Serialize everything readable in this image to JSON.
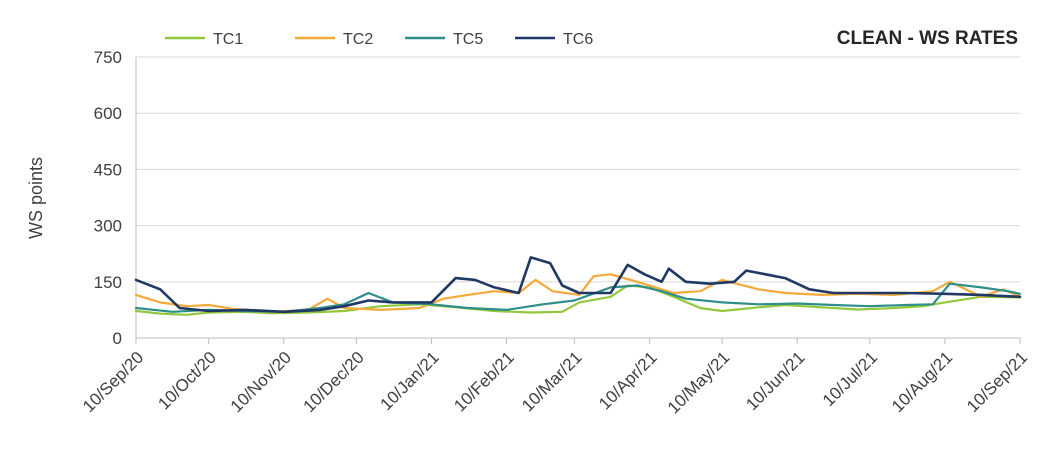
{
  "chart_data": {
    "type": "line",
    "title": "CLEAN - WS RATES",
    "ylabel": "WS points",
    "xlabel": "",
    "ylim": [
      0,
      750
    ],
    "yticks": [
      0,
      150,
      300,
      450,
      600,
      750
    ],
    "xlim": [
      "2020-09-10",
      "2021-09-10"
    ],
    "xtick_labels": [
      "10/Sep/20",
      "10/Oct/20",
      "10/Nov/20",
      "10/Dec/20",
      "10/Jan/21",
      "10/Feb/21",
      "10/Mar/21",
      "10/Apr/21",
      "10/May/21",
      "10/Jun/21",
      "10/Jul/21",
      "10/Aug/21",
      "10/Sep/21"
    ],
    "xtick_dates": [
      "2020-09-10",
      "2020-10-10",
      "2020-11-10",
      "2020-12-10",
      "2021-01-10",
      "2021-02-10",
      "2021-03-10",
      "2021-04-10",
      "2021-05-10",
      "2021-06-10",
      "2021-07-10",
      "2021-08-10",
      "2021-09-10"
    ],
    "grid": "horizontal",
    "legend": "top",
    "series": [
      {
        "name": "TC1",
        "color": "#92c83e",
        "points": [
          [
            "2020-09-10",
            72
          ],
          [
            "2020-09-20",
            65
          ],
          [
            "2020-10-01",
            62
          ],
          [
            "2020-10-10",
            68
          ],
          [
            "2020-10-25",
            70
          ],
          [
            "2020-11-05",
            66
          ],
          [
            "2020-11-20",
            68
          ],
          [
            "2020-12-05",
            72
          ],
          [
            "2020-12-20",
            85
          ],
          [
            "2021-01-05",
            90
          ],
          [
            "2021-01-20",
            82
          ],
          [
            "2021-02-05",
            72
          ],
          [
            "2021-02-20",
            68
          ],
          [
            "2021-03-05",
            70
          ],
          [
            "2021-03-12",
            95
          ],
          [
            "2021-03-25",
            110
          ],
          [
            "2021-04-01",
            140
          ],
          [
            "2021-04-10",
            135
          ],
          [
            "2021-04-20",
            110
          ],
          [
            "2021-05-01",
            80
          ],
          [
            "2021-05-10",
            72
          ],
          [
            "2021-05-25",
            82
          ],
          [
            "2021-06-05",
            88
          ],
          [
            "2021-06-20",
            82
          ],
          [
            "2021-07-05",
            76
          ],
          [
            "2021-07-20",
            80
          ],
          [
            "2021-08-01",
            85
          ],
          [
            "2021-08-10",
            95
          ],
          [
            "2021-08-25",
            110
          ],
          [
            "2021-09-10",
            108
          ]
        ]
      },
      {
        "name": "TC2",
        "color": "#f4a93a",
        "points": [
          [
            "2020-09-10",
            115
          ],
          [
            "2020-09-20",
            95
          ],
          [
            "2020-10-01",
            85
          ],
          [
            "2020-10-10",
            88
          ],
          [
            "2020-10-20",
            78
          ],
          [
            "2020-11-05",
            70
          ],
          [
            "2020-11-20",
            75
          ],
          [
            "2020-11-28",
            105
          ],
          [
            "2020-12-05",
            80
          ],
          [
            "2020-12-20",
            75
          ],
          [
            "2021-01-05",
            80
          ],
          [
            "2021-01-15",
            105
          ],
          [
            "2021-01-25",
            115
          ],
          [
            "2021-02-05",
            125
          ],
          [
            "2021-02-15",
            120
          ],
          [
            "2021-02-22",
            155
          ],
          [
            "2021-03-01",
            125
          ],
          [
            "2021-03-12",
            115
          ],
          [
            "2021-03-18",
            165
          ],
          [
            "2021-03-25",
            170
          ],
          [
            "2021-04-05",
            150
          ],
          [
            "2021-04-20",
            120
          ],
          [
            "2021-05-01",
            125
          ],
          [
            "2021-05-10",
            155
          ],
          [
            "2021-05-25",
            130
          ],
          [
            "2021-06-05",
            120
          ],
          [
            "2021-06-20",
            115
          ],
          [
            "2021-07-05",
            118
          ],
          [
            "2021-07-20",
            115
          ],
          [
            "2021-08-05",
            125
          ],
          [
            "2021-08-12",
            150
          ],
          [
            "2021-08-25",
            110
          ],
          [
            "2021-09-03",
            130
          ],
          [
            "2021-09-10",
            110
          ]
        ]
      },
      {
        "name": "TC5",
        "color": "#2e8e8a",
        "points": [
          [
            "2020-09-10",
            80
          ],
          [
            "2020-09-25",
            70
          ],
          [
            "2020-10-10",
            75
          ],
          [
            "2020-10-25",
            72
          ],
          [
            "2020-11-10",
            70
          ],
          [
            "2020-11-25",
            80
          ],
          [
            "2020-12-05",
            90
          ],
          [
            "2020-12-15",
            120
          ],
          [
            "2020-12-25",
            95
          ],
          [
            "2021-01-10",
            90
          ],
          [
            "2021-01-25",
            80
          ],
          [
            "2021-02-10",
            75
          ],
          [
            "2021-02-25",
            90
          ],
          [
            "2021-03-10",
            100
          ],
          [
            "2021-03-25",
            135
          ],
          [
            "2021-04-05",
            140
          ],
          [
            "2021-04-15",
            125
          ],
          [
            "2021-04-25",
            105
          ],
          [
            "2021-05-10",
            95
          ],
          [
            "2021-05-25",
            90
          ],
          [
            "2021-06-10",
            92
          ],
          [
            "2021-06-25",
            88
          ],
          [
            "2021-07-10",
            85
          ],
          [
            "2021-07-25",
            88
          ],
          [
            "2021-08-05",
            90
          ],
          [
            "2021-08-12",
            145
          ],
          [
            "2021-08-25",
            135
          ],
          [
            "2021-09-05",
            125
          ],
          [
            "2021-09-10",
            118
          ]
        ]
      },
      {
        "name": "TC6",
        "color": "#1f3864",
        "points": [
          [
            "2020-09-10",
            155
          ],
          [
            "2020-09-20",
            130
          ],
          [
            "2020-09-28",
            80
          ],
          [
            "2020-10-10",
            72
          ],
          [
            "2020-10-25",
            75
          ],
          [
            "2020-11-10",
            70
          ],
          [
            "2020-11-25",
            75
          ],
          [
            "2020-12-05",
            85
          ],
          [
            "2020-12-15",
            100
          ],
          [
            "2020-12-25",
            95
          ],
          [
            "2021-01-10",
            95
          ],
          [
            "2021-01-20",
            160
          ],
          [
            "2021-01-28",
            155
          ],
          [
            "2021-02-05",
            135
          ],
          [
            "2021-02-15",
            120
          ],
          [
            "2021-02-20",
            215
          ],
          [
            "2021-02-28",
            200
          ],
          [
            "2021-03-05",
            140
          ],
          [
            "2021-03-12",
            120
          ],
          [
            "2021-03-25",
            120
          ],
          [
            "2021-04-01",
            195
          ],
          [
            "2021-04-08",
            170
          ],
          [
            "2021-04-15",
            150
          ],
          [
            "2021-04-18",
            185
          ],
          [
            "2021-04-25",
            150
          ],
          [
            "2021-05-05",
            145
          ],
          [
            "2021-05-15",
            150
          ],
          [
            "2021-05-20",
            180
          ],
          [
            "2021-06-05",
            160
          ],
          [
            "2021-06-15",
            130
          ],
          [
            "2021-06-25",
            120
          ],
          [
            "2021-07-10",
            120
          ],
          [
            "2021-07-25",
            120
          ],
          [
            "2021-08-10",
            118
          ],
          [
            "2021-08-25",
            115
          ],
          [
            "2021-09-10",
            110
          ]
        ]
      }
    ]
  }
}
